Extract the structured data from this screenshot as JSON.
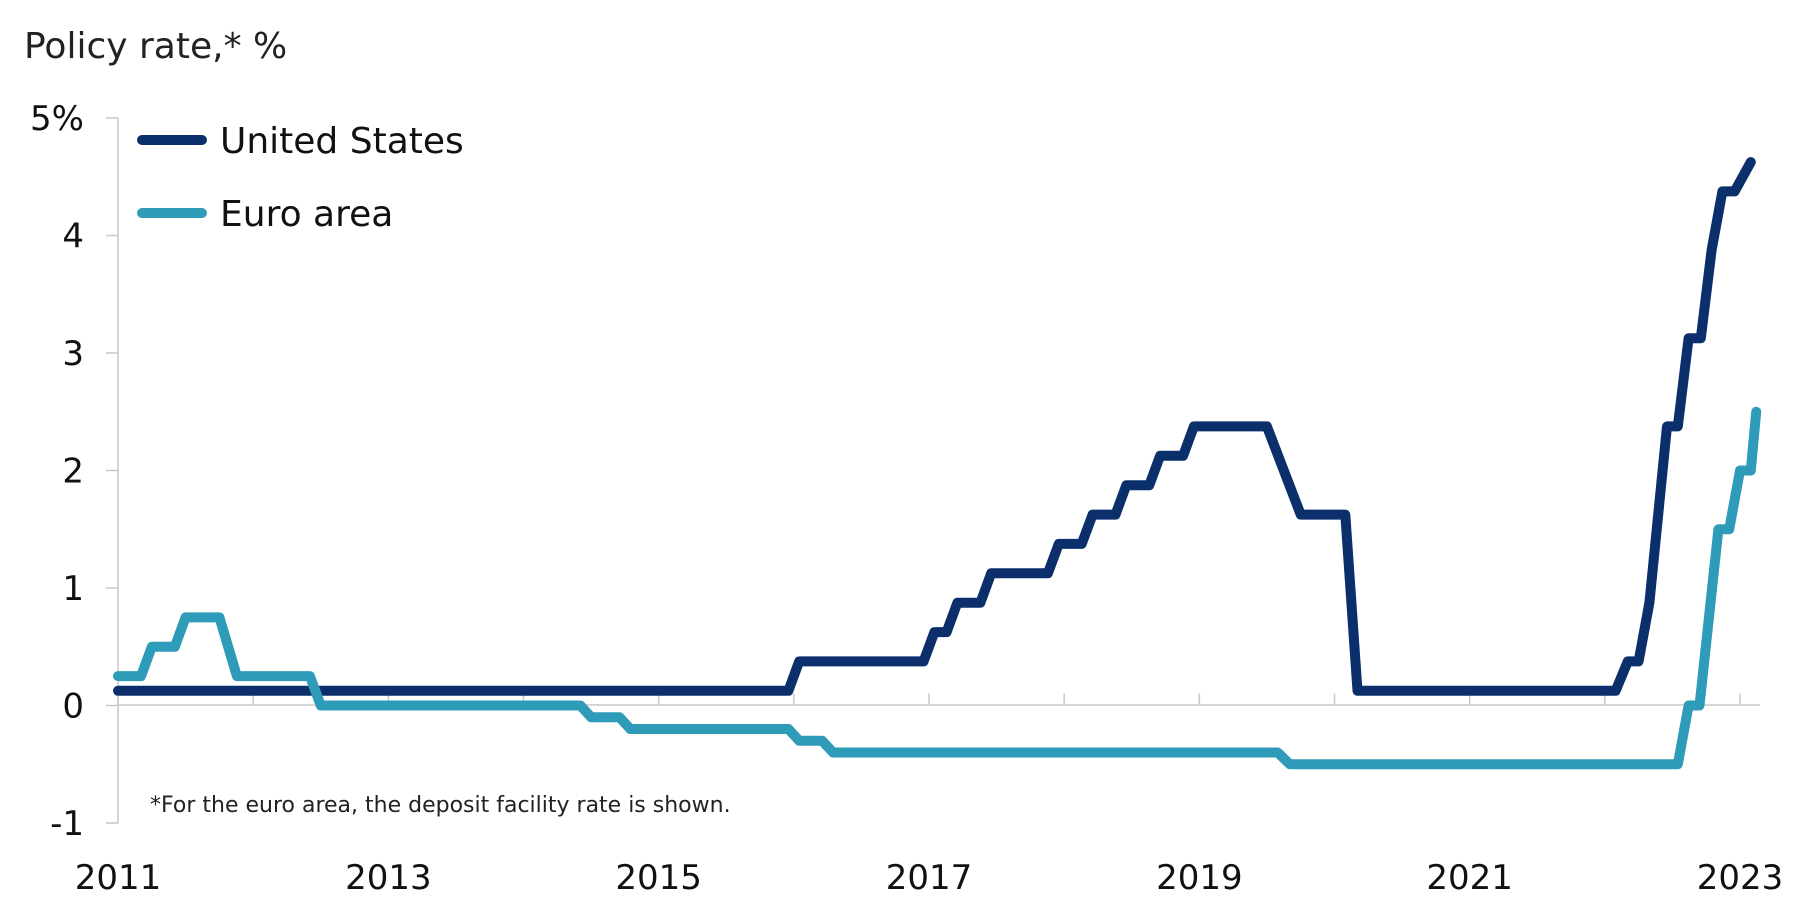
{
  "chart_data": {
    "type": "line",
    "title": "",
    "ylabel": "Policy rate,* %",
    "xlabel": "",
    "xlim": [
      2011,
      2023.15
    ],
    "ylim": [
      -1,
      5
    ],
    "y_ticks": [
      {
        "value": 5,
        "label": "5%"
      },
      {
        "value": 4,
        "label": "4"
      },
      {
        "value": 3,
        "label": "3"
      },
      {
        "value": 2,
        "label": "2"
      },
      {
        "value": 1,
        "label": "1"
      },
      {
        "value": 0,
        "label": "0"
      },
      {
        "value": -1,
        "label": "-1"
      }
    ],
    "x_ticks": [
      {
        "value": 2011,
        "label": "2011"
      },
      {
        "value": 2013,
        "label": "2013"
      },
      {
        "value": 2015,
        "label": "2015"
      },
      {
        "value": 2017,
        "label": "2017"
      },
      {
        "value": 2019,
        "label": "2019"
      },
      {
        "value": 2021,
        "label": "2021"
      },
      {
        "value": 2023,
        "label": "2023"
      }
    ],
    "x_minor_ticks": [
      2012,
      2014,
      2016,
      2018,
      2020,
      2022
    ],
    "legend": {
      "placement": "top-left"
    },
    "grid": false,
    "series": [
      {
        "name": "United States",
        "color": "#0b2f6b",
        "points": [
          [
            2011.0,
            0.125
          ],
          [
            2015.96,
            0.125
          ],
          [
            2016.04,
            0.375
          ],
          [
            2016.96,
            0.375
          ],
          [
            2017.04,
            0.625
          ],
          [
            2017.13,
            0.625
          ],
          [
            2017.21,
            0.875
          ],
          [
            2017.38,
            0.875
          ],
          [
            2017.46,
            1.125
          ],
          [
            2017.88,
            1.125
          ],
          [
            2017.96,
            1.375
          ],
          [
            2018.13,
            1.375
          ],
          [
            2018.21,
            1.625
          ],
          [
            2018.38,
            1.625
          ],
          [
            2018.46,
            1.875
          ],
          [
            2018.63,
            1.875
          ],
          [
            2018.71,
            2.125
          ],
          [
            2018.88,
            2.125
          ],
          [
            2018.96,
            2.375
          ],
          [
            2019.5,
            2.375
          ],
          [
            2019.75,
            1.625
          ],
          [
            2020.08,
            1.625
          ],
          [
            2020.17,
            0.125
          ],
          [
            2022.08,
            0.125
          ],
          [
            2022.17,
            0.375
          ],
          [
            2022.25,
            0.375
          ],
          [
            2022.33,
            0.875
          ],
          [
            2022.46,
            2.375
          ],
          [
            2022.54,
            2.375
          ],
          [
            2022.62,
            3.125
          ],
          [
            2022.71,
            3.125
          ],
          [
            2022.79,
            3.875
          ],
          [
            2022.87,
            4.375
          ],
          [
            2022.96,
            4.375
          ],
          [
            2023.08,
            4.625
          ]
        ]
      },
      {
        "name": "Euro area",
        "color": "#2e9cb8",
        "points": [
          [
            2011.0,
            0.25
          ],
          [
            2011.17,
            0.25
          ],
          [
            2011.25,
            0.5
          ],
          [
            2011.42,
            0.5
          ],
          [
            2011.5,
            0.75
          ],
          [
            2011.75,
            0.75
          ],
          [
            2011.88,
            0.25
          ],
          [
            2012.42,
            0.25
          ],
          [
            2012.5,
            0.0
          ],
          [
            2014.42,
            0.0
          ],
          [
            2014.5,
            -0.1
          ],
          [
            2014.71,
            -0.1
          ],
          [
            2014.79,
            -0.2
          ],
          [
            2015.96,
            -0.2
          ],
          [
            2016.04,
            -0.3
          ],
          [
            2016.21,
            -0.3
          ],
          [
            2016.29,
            -0.4
          ],
          [
            2019.58,
            -0.4
          ],
          [
            2019.67,
            -0.5
          ],
          [
            2022.54,
            -0.5
          ],
          [
            2022.62,
            0.0
          ],
          [
            2022.7,
            0.0
          ],
          [
            2022.84,
            1.5
          ],
          [
            2022.92,
            1.5
          ],
          [
            2023.0,
            2.0
          ],
          [
            2023.08,
            2.0
          ],
          [
            2023.12,
            2.5
          ]
        ]
      }
    ],
    "footnote": "*For the euro area, the deposit facility rate is shown."
  }
}
